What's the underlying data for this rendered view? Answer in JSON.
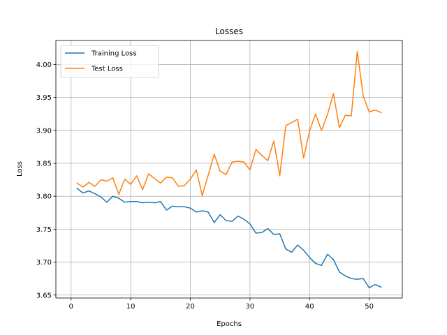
{
  "chart_data": {
    "type": "line",
    "title": "Losses",
    "xlabel": "Epochs",
    "ylabel": "Loss",
    "xlim": [
      -2.55,
      55.55
    ],
    "ylim": [
      3.6455,
      4.0365
    ],
    "x_ticks": [
      0,
      10,
      20,
      30,
      40,
      50
    ],
    "y_ticks": [
      3.65,
      3.7,
      3.75,
      3.8,
      3.85,
      3.9,
      3.95,
      4.0
    ],
    "y_tick_labels": [
      "3.65",
      "3.70",
      "3.75",
      "3.80",
      "3.85",
      "3.90",
      "3.95",
      "4.00"
    ],
    "grid": true,
    "legend": "top-left",
    "x": [
      1,
      2,
      3,
      4,
      5,
      6,
      7,
      8,
      9,
      10,
      11,
      12,
      13,
      14,
      15,
      16,
      17,
      18,
      19,
      20,
      21,
      22,
      23,
      24,
      25,
      26,
      27,
      28,
      29,
      30,
      31,
      32,
      33,
      34,
      35,
      36,
      37,
      38,
      39,
      40,
      41,
      42,
      43,
      44,
      45,
      46,
      47,
      48,
      49,
      50,
      51,
      52
    ],
    "series": [
      {
        "name": "Training Loss",
        "color": "#1f77b4",
        "values": [
          3.812,
          3.805,
          3.808,
          3.804,
          3.799,
          3.791,
          3.8,
          3.797,
          3.791,
          3.792,
          3.792,
          3.79,
          3.791,
          3.79,
          3.792,
          3.779,
          3.785,
          3.784,
          3.784,
          3.782,
          3.776,
          3.778,
          3.776,
          3.76,
          3.772,
          3.763,
          3.762,
          3.77,
          3.765,
          3.758,
          3.744,
          3.745,
          3.751,
          3.742,
          3.743,
          3.72,
          3.715,
          3.726,
          3.718,
          3.707,
          3.698,
          3.695,
          3.712,
          3.704,
          3.685,
          3.679,
          3.675,
          3.674,
          3.675,
          3.661,
          3.666,
          3.662
        ]
      },
      {
        "name": "Test Loss",
        "color": "#ff7f0e",
        "values": [
          3.82,
          3.814,
          3.821,
          3.815,
          3.825,
          3.823,
          3.828,
          3.803,
          3.826,
          3.818,
          3.831,
          3.81,
          3.834,
          3.827,
          3.82,
          3.829,
          3.828,
          3.815,
          3.816,
          3.826,
          3.84,
          3.801,
          3.832,
          3.864,
          3.838,
          3.833,
          3.852,
          3.853,
          3.852,
          3.84,
          3.871,
          3.862,
          3.854,
          3.884,
          3.831,
          3.907,
          3.912,
          3.917,
          3.858,
          3.899,
          3.925,
          3.9,
          3.924,
          3.956,
          3.904,
          3.923,
          3.922,
          4.02,
          3.952,
          3.928,
          3.931,
          3.927
        ]
      }
    ]
  }
}
